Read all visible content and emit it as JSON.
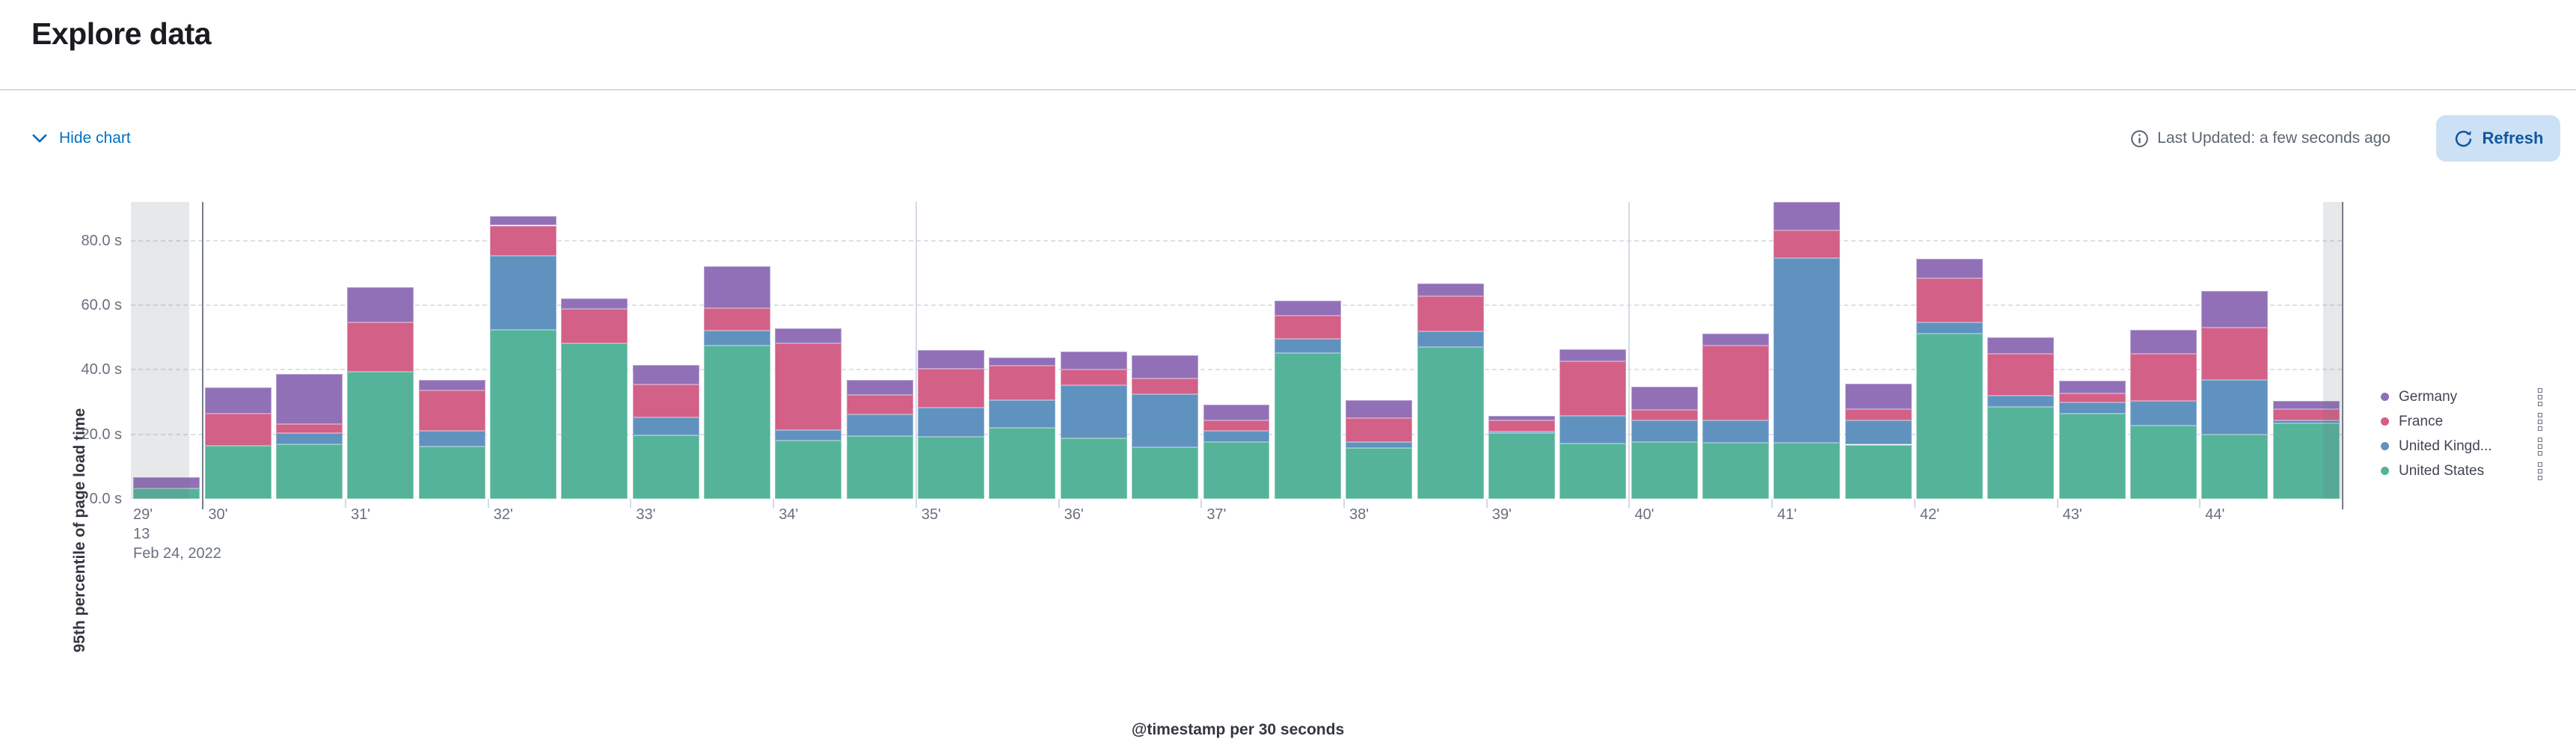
{
  "page": {
    "title": "Explore data"
  },
  "toolbar": {
    "hide_chart_label": "Hide chart",
    "last_updated_label": "Last Updated: a few seconds ago",
    "refresh_label": "Refresh",
    "link_color": "#0071c2",
    "refresh_bg": "#cce1f5",
    "refresh_text_color": "#11579e"
  },
  "chart_data": {
    "type": "bar",
    "stacked": true,
    "title": "",
    "xlabel": "@timestamp per 30 seconds",
    "ylabel": "95th percentile of page load time",
    "ylim": [
      0,
      92
    ],
    "y_tick_values": [
      0,
      20,
      40,
      60,
      80
    ],
    "y_tick_labels": [
      "0.0 s",
      "20.0 s",
      "40.0 s",
      "60.0 s",
      "80.0 s"
    ],
    "grid": "horizontal dashed",
    "legend_position": "right",
    "x_first_tick_label": "29'",
    "x_first_tick_sublabels": [
      "13",
      "Feb 24, 2022"
    ],
    "x_minute_tick_labels": [
      "30'",
      "31'",
      "32'",
      "33'",
      "34'",
      "35'",
      "36'",
      "37'",
      "38'",
      "39'",
      "40'",
      "41'",
      "42'",
      "43'",
      "44'"
    ],
    "categories": [
      "29:30",
      "30:00",
      "30:30",
      "31:00",
      "31:30",
      "32:00",
      "32:30",
      "33:00",
      "33:30",
      "34:00",
      "34:30",
      "35:00",
      "35:30",
      "36:00",
      "36:30",
      "37:00",
      "37:30",
      "38:00",
      "38:30",
      "39:00",
      "39:30",
      "40:00",
      "40:30",
      "41:00",
      "41:30",
      "42:00",
      "42:30",
      "43:00",
      "43:30",
      "44:00",
      "44:30"
    ],
    "series": [
      {
        "name": "United States",
        "color": "#54B399",
        "values": [
          3.2,
          16.5,
          17,
          39.5,
          16.3,
          52.3,
          48.2,
          19.8,
          47.4,
          18.1,
          19.5,
          19.2,
          22.1,
          18.7,
          16.1,
          17.7,
          45.2,
          15.7,
          47.1,
          20.5,
          17.1,
          17.7,
          17.3,
          17.4,
          16.8,
          51.2,
          28.5,
          26.4,
          22.6,
          20,
          23.3
        ]
      },
      {
        "name": "United Kingdom",
        "color": "#6092C0",
        "values": [
          0,
          0,
          3.5,
          0,
          4.8,
          22.9,
          0,
          5.4,
          4.8,
          3.2,
          6.7,
          9.1,
          8.5,
          16.6,
          16.3,
          3.3,
          4.5,
          2,
          4.9,
          0.4,
          8.6,
          6.6,
          7,
          57.3,
          7.5,
          3.5,
          3.4,
          3.6,
          7.7,
          16.8,
          1
        ]
      },
      {
        "name": "France",
        "color": "#D36086",
        "values": [
          0,
          10,
          2.7,
          15.2,
          12.6,
          9.5,
          10.7,
          10.3,
          6.8,
          26.8,
          6,
          12.1,
          10.6,
          4.9,
          4.9,
          3.4,
          7,
          7.4,
          10.9,
          3.4,
          17,
          3.2,
          23.2,
          8.6,
          3.6,
          13.7,
          13.1,
          2.6,
          14.7,
          16.3,
          3.6
        ]
      },
      {
        "name": "Germany",
        "color": "#9170B8",
        "values": [
          3.6,
          8,
          15.5,
          10.8,
          3.1,
          2.9,
          3.1,
          6,
          13,
          4.7,
          4.6,
          5.7,
          2.6,
          5.4,
          7.3,
          4.7,
          4.6,
          5.6,
          3.8,
          1.5,
          3.7,
          7.2,
          3.6,
          8.6,
          7.8,
          5.9,
          5,
          3.9,
          7.3,
          11.3,
          2.4
        ]
      }
    ],
    "legend": [
      {
        "label": "Germany",
        "color": "#9170B8"
      },
      {
        "label": "France",
        "color": "#D36086"
      },
      {
        "label": "United Kingd...",
        "color": "#6092C0"
      },
      {
        "label": "United States",
        "color": "#54B399"
      }
    ],
    "partial_buckets": "first and last buckets shaded gray"
  }
}
